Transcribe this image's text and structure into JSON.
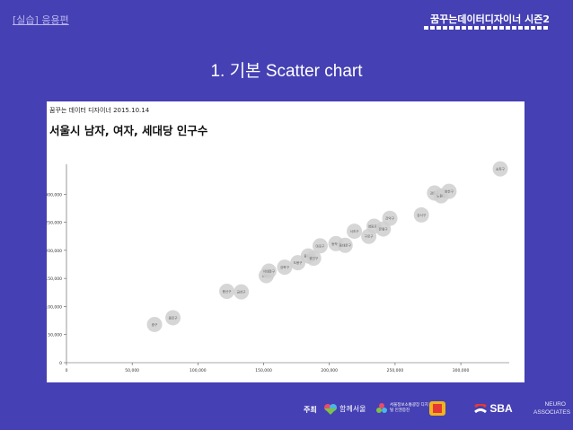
{
  "header": {
    "section_label": "[실습] 응용편",
    "brand": "꿈꾸는데이터디자이너 시즌2"
  },
  "slide": {
    "title": "1. 기본 Scatter chart"
  },
  "panel": {
    "subtitle": "꿈꾸는 데이터 디자이너 2015.10.14",
    "title": "서울시 남자, 여자, 세대당 인구수"
  },
  "chart_data": {
    "type": "scatter",
    "title": "서울시 남자, 여자, 세대당 인구수",
    "xlim": [
      0,
      330000
    ],
    "ylim": [
      0,
      350000
    ],
    "x_ticks": [
      "0",
      "50,000",
      "100,000",
      "150,000",
      "200,000",
      "250,000",
      "300,000"
    ],
    "y_ticks": [
      "0",
      "50,000",
      "100,000",
      "150,000",
      "200,000",
      "250,000",
      "300,000"
    ],
    "x_tick_values": [
      0,
      50000,
      100000,
      150000,
      200000,
      250000,
      300000
    ],
    "y_tick_values": [
      0,
      50000,
      100000,
      150000,
      200000,
      250000,
      300000
    ],
    "points": [
      {
        "label": "중구",
        "x": 67000,
        "y": 68000
      },
      {
        "label": "종로구",
        "x": 81000,
        "y": 80000
      },
      {
        "label": "용산구",
        "x": 122000,
        "y": 127000
      },
      {
        "label": "금천구",
        "x": 133000,
        "y": 126000
      },
      {
        "label": "성동구",
        "x": 152000,
        "y": 155000
      },
      {
        "label": "서대문구",
        "x": 154000,
        "y": 163000
      },
      {
        "label": "강북구",
        "x": 166000,
        "y": 170000
      },
      {
        "label": "도봉구",
        "x": 176000,
        "y": 178000
      },
      {
        "label": "중랑구",
        "x": 184000,
        "y": 190000
      },
      {
        "label": "광진구",
        "x": 188000,
        "y": 186000
      },
      {
        "label": "마포구",
        "x": 193000,
        "y": 208000
      },
      {
        "label": "동작구",
        "x": 205000,
        "y": 212000
      },
      {
        "label": "동대문구",
        "x": 212000,
        "y": 209000
      },
      {
        "label": "서초구",
        "x": 219000,
        "y": 234000
      },
      {
        "label": "구로구",
        "x": 230000,
        "y": 225000
      },
      {
        "label": "영등포구",
        "x": 234000,
        "y": 243000
      },
      {
        "label": "은평구",
        "x": 241000,
        "y": 238000
      },
      {
        "label": "관악구",
        "x": 246000,
        "y": 257000
      },
      {
        "label": "강서구",
        "x": 270000,
        "y": 263000
      },
      {
        "label": "강동구",
        "x": 280000,
        "y": 302000
      },
      {
        "label": "노원구",
        "x": 285000,
        "y": 297000
      },
      {
        "label": "양천구",
        "x": 291000,
        "y": 305000
      },
      {
        "label": "송파구",
        "x": 330000,
        "y": 345000
      }
    ]
  },
  "footer": {
    "host_label": "주최",
    "logo1": "함께서울",
    "logo2": "서울정보소통광장 디지털 인권증진",
    "logo3": "S",
    "logo4": "SBA",
    "logo5_line1": "NEURO",
    "logo5_line2": "ASSOCIATES"
  }
}
